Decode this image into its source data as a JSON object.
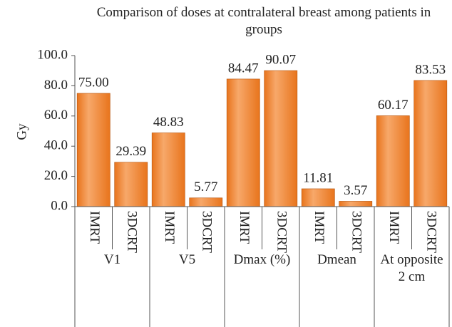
{
  "chart_data": {
    "type": "bar",
    "title": "Comparison of doses at contralateral breast among patients in groups",
    "y_label": "Gy",
    "groups": [
      "V1",
      "V5",
      "Dmax (%)",
      "Dmean",
      "At opposite 2 cm"
    ],
    "categories": [
      "IMRT",
      "3DCRT",
      "IMRT",
      "3DCRT",
      "IMRT",
      "3DCRT",
      "IMRT",
      "3DCRT",
      "IMRT",
      "3DCRT"
    ],
    "values": [
      75.0,
      29.39,
      48.83,
      5.77,
      84.47,
      90.07,
      11.81,
      3.57,
      60.17,
      83.53
    ],
    "value_labels": [
      "75.00",
      "29.39",
      "48.83",
      "5.77",
      "84.47",
      "90.07",
      "11.81",
      "3.57",
      "60.17",
      "83.53"
    ],
    "color": "#e8741c",
    "ylim": [
      0,
      100
    ],
    "yticks": [
      {
        "value": 0,
        "label": "0.0"
      },
      {
        "value": 20,
        "label": "20.0"
      },
      {
        "value": 40,
        "label": "40.0"
      },
      {
        "value": 60,
        "label": "60.0"
      },
      {
        "value": 80,
        "label": "80.0"
      },
      {
        "value": 100,
        "label": "100.0"
      }
    ],
    "grid": false
  }
}
